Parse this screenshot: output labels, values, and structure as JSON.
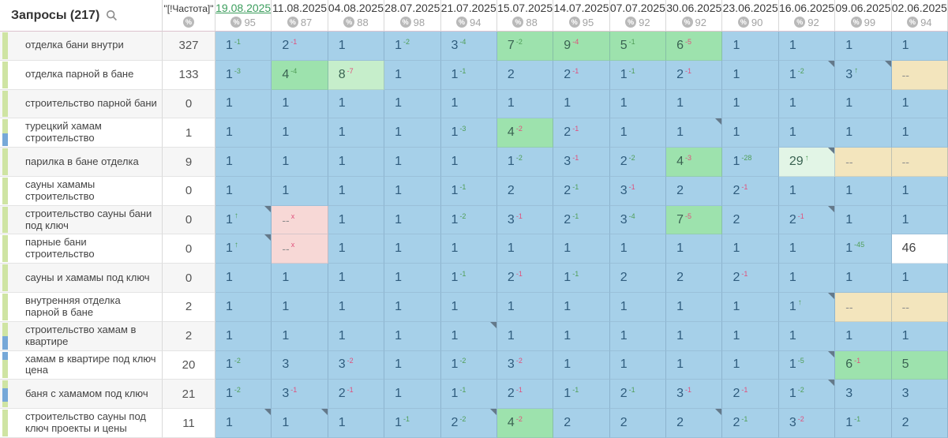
{
  "header": {
    "queries_label": "Запросы (217)",
    "frequency_label": "\"[!Частота]\"",
    "percent_icon": "%",
    "dates": [
      {
        "label": "19.08.2025",
        "percent": "95",
        "active": true
      },
      {
        "label": "11.08.2025",
        "percent": "87",
        "active": false
      },
      {
        "label": "04.08.2025",
        "percent": "88",
        "active": false
      },
      {
        "label": "28.07.2025",
        "percent": "98",
        "active": false
      },
      {
        "label": "21.07.2025",
        "percent": "94",
        "active": false
      },
      {
        "label": "15.07.2025",
        "percent": "88",
        "active": false
      },
      {
        "label": "14.07.2025",
        "percent": "95",
        "active": false
      },
      {
        "label": "07.07.2025",
        "percent": "92",
        "active": false
      },
      {
        "label": "30.06.2025",
        "percent": "92",
        "active": false
      },
      {
        "label": "23.06.2025",
        "percent": "90",
        "active": false
      },
      {
        "label": "16.06.2025",
        "percent": "92",
        "active": false
      },
      {
        "label": "09.06.2025",
        "percent": "99",
        "active": false
      },
      {
        "label": "02.06.2025",
        "percent": "94",
        "active": false
      }
    ]
  },
  "colors": {
    "blue": "#a6d0e9",
    "green": "#9de2ad",
    "greenLight": "#c6eecb",
    "pale": "#e2f5e6",
    "pink": "#f7d8d6",
    "wheat": "#f3e5bd",
    "supUp": "#4f9e57",
    "supDown": "#e0507c",
    "activeDate": "#3c9e5d",
    "indGreen": "#cfe4a3",
    "indBlue": "#76a8d8"
  },
  "rows": [
    {
      "label": "отделка бани внутри",
      "frequency": "327",
      "blue": null,
      "cells": [
        {
          "v": "1",
          "d": "-1",
          "c": "g"
        },
        {
          "v": "2",
          "d": "-1",
          "c": "r"
        },
        {
          "v": "1"
        },
        {
          "v": "1",
          "d": "-2",
          "c": "g"
        },
        {
          "v": "3",
          "d": "-4",
          "c": "g"
        },
        {
          "v": "7",
          "d": "-2",
          "c": "g",
          "bg": "green"
        },
        {
          "v": "9",
          "d": "-4",
          "c": "r",
          "bg": "green"
        },
        {
          "v": "5",
          "d": "-1",
          "c": "g",
          "bg": "green"
        },
        {
          "v": "6",
          "d": "-5",
          "c": "r",
          "bg": "green"
        },
        {
          "v": "1"
        },
        {
          "v": "1"
        },
        {
          "v": "1"
        },
        {
          "v": "1"
        }
      ]
    },
    {
      "label": "отделка парной в бане",
      "frequency": "133",
      "blue": null,
      "cells": [
        {
          "v": "1",
          "d": "-3",
          "c": "g"
        },
        {
          "v": "4",
          "d": "-4",
          "c": "g",
          "bg": "green"
        },
        {
          "v": "8",
          "d": "-7",
          "c": "r",
          "bg": "greenLight"
        },
        {
          "v": "1"
        },
        {
          "v": "1",
          "d": "-1",
          "c": "g"
        },
        {
          "v": "2"
        },
        {
          "v": "2",
          "d": "-1",
          "c": "r"
        },
        {
          "v": "1",
          "d": "-1",
          "c": "g"
        },
        {
          "v": "2",
          "d": "-1",
          "c": "r"
        },
        {
          "v": "1"
        },
        {
          "v": "1",
          "d": "-2",
          "c": "g",
          "n": true
        },
        {
          "v": "3",
          "a": true,
          "n": true
        },
        {
          "v": "--",
          "bg": "wheat"
        }
      ]
    },
    {
      "label": "строительство парной бани",
      "frequency": "0",
      "blue": null,
      "cells": [
        {
          "v": "1"
        },
        {
          "v": "1"
        },
        {
          "v": "1"
        },
        {
          "v": "1"
        },
        {
          "v": "1"
        },
        {
          "v": "1"
        },
        {
          "v": "1"
        },
        {
          "v": "1"
        },
        {
          "v": "1"
        },
        {
          "v": "1"
        },
        {
          "v": "1"
        },
        {
          "v": "1"
        },
        {
          "v": "1"
        }
      ]
    },
    {
      "label": "турецкий хамам строительство",
      "frequency": "1",
      "blue": "bottom",
      "cells": [
        {
          "v": "1"
        },
        {
          "v": "1"
        },
        {
          "v": "1"
        },
        {
          "v": "1"
        },
        {
          "v": "1",
          "d": "-3",
          "c": "g"
        },
        {
          "v": "4",
          "d": "-2",
          "c": "r",
          "bg": "green"
        },
        {
          "v": "2",
          "d": "-1",
          "c": "r"
        },
        {
          "v": "1"
        },
        {
          "v": "1",
          "n": true
        },
        {
          "v": "1"
        },
        {
          "v": "1"
        },
        {
          "v": "1"
        },
        {
          "v": "1"
        }
      ]
    },
    {
      "label": "парилка в бане отделка",
      "frequency": "9",
      "blue": null,
      "cells": [
        {
          "v": "1"
        },
        {
          "v": "1"
        },
        {
          "v": "1"
        },
        {
          "v": "1"
        },
        {
          "v": "1"
        },
        {
          "v": "1",
          "d": "-2",
          "c": "g"
        },
        {
          "v": "3",
          "d": "-1",
          "c": "r"
        },
        {
          "v": "2",
          "d": "-2",
          "c": "g"
        },
        {
          "v": "4",
          "d": "-3",
          "c": "r",
          "bg": "green"
        },
        {
          "v": "1",
          "d": "-28",
          "c": "g"
        },
        {
          "v": "29",
          "a": true,
          "bg": "pale",
          "n": true
        },
        {
          "v": "--",
          "bg": "wheat"
        },
        {
          "v": "--",
          "bg": "wheat"
        }
      ]
    },
    {
      "label": "сауны хамамы строительство",
      "frequency": "0",
      "blue": null,
      "cells": [
        {
          "v": "1"
        },
        {
          "v": "1"
        },
        {
          "v": "1"
        },
        {
          "v": "1"
        },
        {
          "v": "1",
          "d": "-1",
          "c": "g"
        },
        {
          "v": "2"
        },
        {
          "v": "2",
          "d": "-1",
          "c": "g"
        },
        {
          "v": "3",
          "d": "-1",
          "c": "r"
        },
        {
          "v": "2"
        },
        {
          "v": "2",
          "d": "-1",
          "c": "r"
        },
        {
          "v": "1"
        },
        {
          "v": "1"
        },
        {
          "v": "1"
        }
      ]
    },
    {
      "label": "строительство сауны бани под ключ",
      "frequency": "0",
      "blue": null,
      "cells": [
        {
          "v": "1",
          "a": true,
          "n": true
        },
        {
          "v": "--",
          "d": "x",
          "c": "r",
          "bg": "pink"
        },
        {
          "v": "1"
        },
        {
          "v": "1"
        },
        {
          "v": "1",
          "d": "-2",
          "c": "g"
        },
        {
          "v": "3",
          "d": "-1",
          "c": "r"
        },
        {
          "v": "2",
          "d": "-1",
          "c": "g"
        },
        {
          "v": "3",
          "d": "-4",
          "c": "g"
        },
        {
          "v": "7",
          "d": "-5",
          "c": "r",
          "bg": "green"
        },
        {
          "v": "2"
        },
        {
          "v": "2",
          "d": "-1",
          "c": "r",
          "n": true
        },
        {
          "v": "1"
        },
        {
          "v": "1"
        }
      ]
    },
    {
      "label": "парные бани строительство",
      "frequency": "0",
      "blue": null,
      "cells": [
        {
          "v": "1",
          "a": true,
          "n": true
        },
        {
          "v": "--",
          "d": "x",
          "c": "r",
          "bg": "pink"
        },
        {
          "v": "1"
        },
        {
          "v": "1"
        },
        {
          "v": "1"
        },
        {
          "v": "1"
        },
        {
          "v": "1"
        },
        {
          "v": "1"
        },
        {
          "v": "1"
        },
        {
          "v": "1"
        },
        {
          "v": "1"
        },
        {
          "v": "1",
          "d": "-45",
          "c": "g"
        },
        {
          "v": "46",
          "bg": "white"
        }
      ]
    },
    {
      "label": "сауны и хамамы под ключ",
      "frequency": "0",
      "blue": null,
      "cells": [
        {
          "v": "1"
        },
        {
          "v": "1"
        },
        {
          "v": "1"
        },
        {
          "v": "1"
        },
        {
          "v": "1",
          "d": "-1",
          "c": "g"
        },
        {
          "v": "2",
          "d": "-1",
          "c": "r"
        },
        {
          "v": "1",
          "d": "-1",
          "c": "g"
        },
        {
          "v": "2"
        },
        {
          "v": "2"
        },
        {
          "v": "2",
          "d": "-1",
          "c": "r"
        },
        {
          "v": "1"
        },
        {
          "v": "1"
        },
        {
          "v": "1"
        }
      ]
    },
    {
      "label": "внутренняя отделка парной в бане",
      "frequency": "2",
      "blue": null,
      "cells": [
        {
          "v": "1"
        },
        {
          "v": "1"
        },
        {
          "v": "1"
        },
        {
          "v": "1"
        },
        {
          "v": "1"
        },
        {
          "v": "1"
        },
        {
          "v": "1"
        },
        {
          "v": "1"
        },
        {
          "v": "1"
        },
        {
          "v": "1"
        },
        {
          "v": "1",
          "a": true,
          "n": true
        },
        {
          "v": "--",
          "bg": "wheat"
        },
        {
          "v": "--",
          "bg": "wheat"
        }
      ]
    },
    {
      "label": "строительство хамам в квартире",
      "frequency": "2",
      "blue": "bottom",
      "cells": [
        {
          "v": "1"
        },
        {
          "v": "1"
        },
        {
          "v": "1"
        },
        {
          "v": "1"
        },
        {
          "v": "1",
          "n": true
        },
        {
          "v": "1"
        },
        {
          "v": "1"
        },
        {
          "v": "1"
        },
        {
          "v": "1"
        },
        {
          "v": "1"
        },
        {
          "v": "1"
        },
        {
          "v": "1"
        },
        {
          "v": "1"
        }
      ]
    },
    {
      "label": "хамам в квартире под ключ цена",
      "frequency": "20",
      "blue": "top",
      "cells": [
        {
          "v": "1",
          "d": "-2",
          "c": "g"
        },
        {
          "v": "3"
        },
        {
          "v": "3",
          "d": "-2",
          "c": "r"
        },
        {
          "v": "1"
        },
        {
          "v": "1",
          "d": "-2",
          "c": "g"
        },
        {
          "v": "3",
          "d": "-2",
          "c": "r"
        },
        {
          "v": "1"
        },
        {
          "v": "1"
        },
        {
          "v": "1"
        },
        {
          "v": "1"
        },
        {
          "v": "1",
          "d": "-5",
          "c": "g",
          "n": true
        },
        {
          "v": "6",
          "d": "-1",
          "c": "r",
          "bg": "green"
        },
        {
          "v": "5",
          "bg": "green"
        }
      ]
    },
    {
      "label": "баня с хамамом под ключ",
      "frequency": "21",
      "blue": "mid",
      "cells": [
        {
          "v": "1",
          "d": "-2",
          "c": "g"
        },
        {
          "v": "3",
          "d": "-1",
          "c": "r"
        },
        {
          "v": "2",
          "d": "-1",
          "c": "r"
        },
        {
          "v": "1"
        },
        {
          "v": "1",
          "d": "-1",
          "c": "g"
        },
        {
          "v": "2",
          "d": "-1",
          "c": "r"
        },
        {
          "v": "1",
          "d": "-1",
          "c": "g"
        },
        {
          "v": "2",
          "d": "-1",
          "c": "g"
        },
        {
          "v": "3",
          "d": "-1",
          "c": "r"
        },
        {
          "v": "2",
          "d": "-1",
          "c": "r"
        },
        {
          "v": "1",
          "d": "-2",
          "c": "g",
          "n": true
        },
        {
          "v": "3"
        },
        {
          "v": "3"
        }
      ]
    },
    {
      "label": "строительство сауны под ключ проекты и цены",
      "frequency": "11",
      "blue": null,
      "cells": [
        {
          "v": "1",
          "n": true
        },
        {
          "v": "1",
          "n": true
        },
        {
          "v": "1"
        },
        {
          "v": "1",
          "d": "-1",
          "c": "g"
        },
        {
          "v": "2",
          "d": "-2",
          "c": "g",
          "n": true
        },
        {
          "v": "4",
          "d": "-2",
          "c": "r",
          "bg": "green"
        },
        {
          "v": "2"
        },
        {
          "v": "2"
        },
        {
          "v": "2",
          "n": true
        },
        {
          "v": "2",
          "d": "-1",
          "c": "g"
        },
        {
          "v": "3",
          "d": "-2",
          "c": "r"
        },
        {
          "v": "1",
          "d": "-1",
          "c": "g"
        },
        {
          "v": "2"
        }
      ]
    }
  ]
}
